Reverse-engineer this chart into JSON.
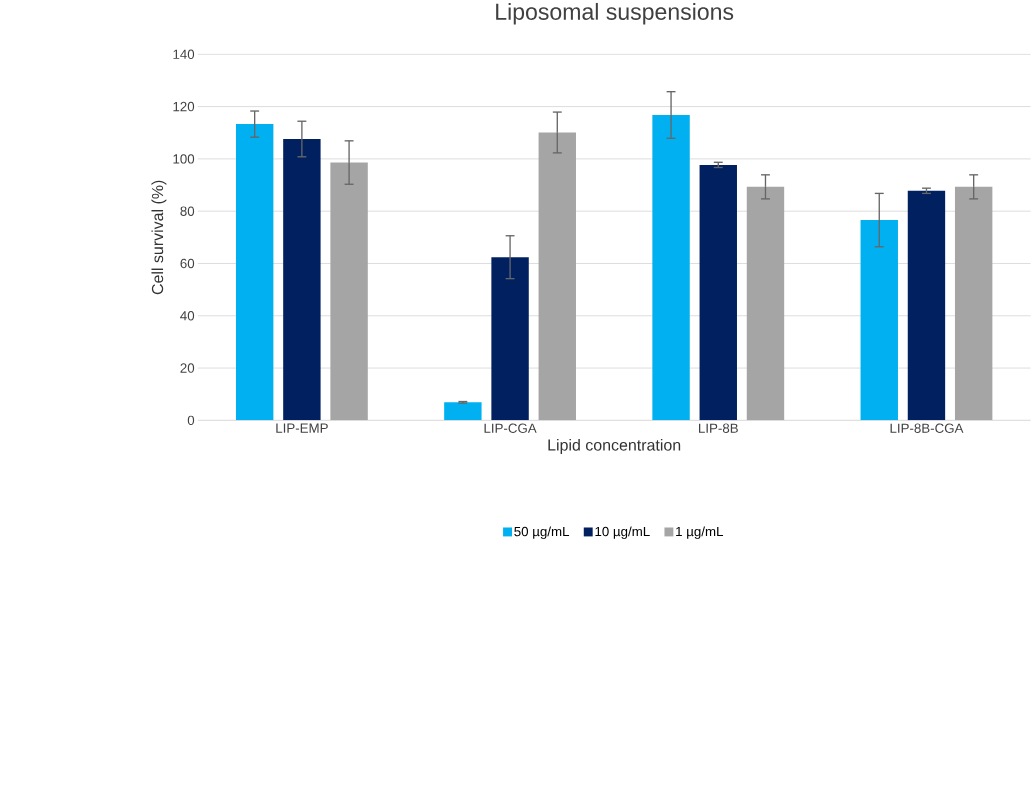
{
  "chart_data": {
    "type": "bar",
    "title": "Liposomal suspensions",
    "xlabel": "Lipid concentration",
    "ylabel": "Cell survival (%)",
    "categories": [
      "LIP-EMP",
      "LIP-CGA",
      "LIP-8B",
      "LIP-8B-CGA"
    ],
    "series": [
      {
        "name": "50 µg/mL",
        "color": "#00b0f0",
        "values": [
          113.3,
          6.9,
          116.8,
          76.6
        ],
        "errors": [
          5,
          0.3,
          8.9,
          10.2
        ]
      },
      {
        "name": "10 µg/mL",
        "color": "#002060",
        "values": [
          107.6,
          62.4,
          97.7,
          87.8
        ],
        "errors": [
          6.8,
          8.2,
          1,
          1
        ]
      },
      {
        "name": "1 µg/mL",
        "color": "#a5a5a5",
        "values": [
          98.6,
          110.1,
          89.3,
          89.3
        ],
        "errors": [
          8.3,
          7.8,
          4.6,
          4.6
        ]
      }
    ],
    "ylim": [
      0,
      140
    ],
    "yticks": [
      0,
      20,
      40,
      60,
      80,
      100,
      120,
      140
    ],
    "grid": "y",
    "legend": "bottom"
  }
}
